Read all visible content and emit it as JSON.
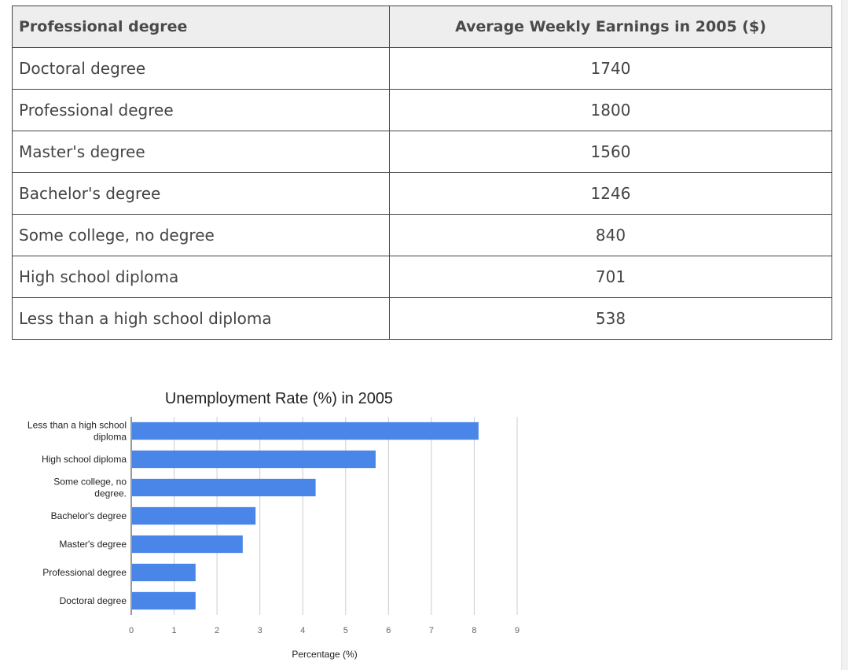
{
  "table": {
    "headers": [
      "Professional degree",
      "Average Weekly Earnings in 2005 ($)"
    ],
    "rows": [
      {
        "label": "Doctoral degree",
        "value": "1740"
      },
      {
        "label": "Professional degree",
        "value": "1800"
      },
      {
        "label": "Master's degree",
        "value": "1560"
      },
      {
        "label": "Bachelor's degree",
        "value": "1246"
      },
      {
        "label": "Some college, no degree",
        "value": "840"
      },
      {
        "label": "High school diploma",
        "value": "701"
      },
      {
        "label": "Less than a high school diploma",
        "value": "538"
      }
    ]
  },
  "chart_data": {
    "type": "bar",
    "orientation": "horizontal",
    "title": "Unemployment Rate (%) in 2005",
    "xlabel": "Percentage (%)",
    "ylabel": "",
    "categories": [
      "Less than a high school diploma",
      "High school diploma",
      "Some college, no degree.",
      "Bachelor's degree",
      "Master's degree",
      "Professional degree",
      "Doctoral degree"
    ],
    "category_lines": [
      [
        "Less than a high school",
        "diploma"
      ],
      [
        "High school diploma"
      ],
      [
        "Some college, no",
        "degree."
      ],
      [
        "Bachelor's degree"
      ],
      [
        "Master's degree"
      ],
      [
        "Professional degree"
      ],
      [
        "Doctoral degree"
      ]
    ],
    "values": [
      8.1,
      5.7,
      4.3,
      2.9,
      2.6,
      1.5,
      1.5
    ],
    "xlim": [
      0,
      9
    ],
    "xticks": [
      "0",
      "1",
      "2",
      "3",
      "4",
      "5",
      "6",
      "7",
      "8",
      "9"
    ],
    "grid": true,
    "bar_color": "#4a86e8",
    "legend": "none"
  }
}
